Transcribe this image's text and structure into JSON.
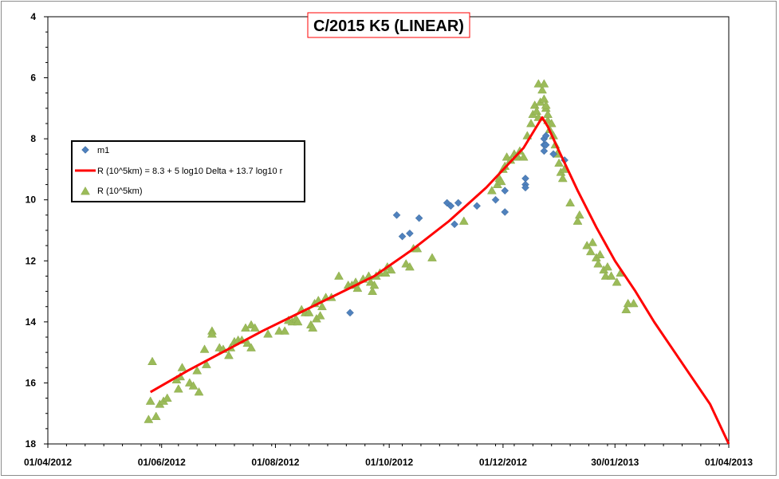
{
  "chart_data": {
    "type": "scatter",
    "title": "C/2015 K5 (LINEAR)",
    "xlabel": "",
    "ylabel": "",
    "x_range": [
      "2012-04-01",
      "2013-04-01"
    ],
    "y_range": [
      4,
      18
    ],
    "y_inverted": true,
    "x_tick_labels": [
      "01/04/2012",
      "01/06/2012",
      "01/08/2012",
      "01/10/2012",
      "01/12/2012",
      "30/01/2013",
      "01/04/2013"
    ],
    "x_tick_dates": [
      "2012-04-01",
      "2012-06-01",
      "2012-08-01",
      "2012-10-01",
      "2012-12-01",
      "2013-01-30",
      "2013-04-01"
    ],
    "y_ticks": [
      4,
      6,
      8,
      10,
      12,
      14,
      16,
      18
    ],
    "legend_position": "upper-left",
    "colors": {
      "m1": "#4f81bd",
      "model": "#ff0000",
      "R": "#9bbb59",
      "title_border": "#ff0000"
    },
    "series": [
      {
        "name": "m1",
        "kind": "scatter",
        "marker": "diamond",
        "points": [
          [
            "2012-09-10",
            13.7
          ],
          [
            "2012-10-05",
            10.5
          ],
          [
            "2012-10-08",
            11.2
          ],
          [
            "2012-10-12",
            11.1
          ],
          [
            "2012-10-17",
            10.6
          ],
          [
            "2012-11-01",
            10.1
          ],
          [
            "2012-11-03",
            10.2
          ],
          [
            "2012-11-05",
            10.8
          ],
          [
            "2012-11-07",
            10.1
          ],
          [
            "2012-11-17",
            10.2
          ],
          [
            "2012-11-27",
            10.0
          ],
          [
            "2012-12-02",
            9.7
          ],
          [
            "2012-12-02",
            10.4
          ],
          [
            "2012-12-13",
            9.3
          ],
          [
            "2012-12-13",
            9.5
          ],
          [
            "2012-12-13",
            9.6
          ],
          [
            "2012-12-23",
            8.0
          ],
          [
            "2012-12-23",
            8.2
          ],
          [
            "2012-12-23",
            8.4
          ],
          [
            "2012-12-24",
            7.9
          ],
          [
            "2012-12-24",
            8.2
          ],
          [
            "2012-12-28",
            8.5
          ],
          [
            "2013-01-03",
            8.7
          ]
        ]
      },
      {
        "name": "R (10^5km) = 8.3 + 5 log10 Delta + 13.7 log10 r",
        "kind": "line",
        "points": [
          [
            "2012-05-26",
            16.3
          ],
          [
            "2012-06-15",
            15.6
          ],
          [
            "2012-07-05",
            14.95
          ],
          [
            "2012-07-25",
            14.3
          ],
          [
            "2012-08-14",
            13.7
          ],
          [
            "2012-09-03",
            13.1
          ],
          [
            "2012-09-23",
            12.5
          ],
          [
            "2012-10-13",
            11.65
          ],
          [
            "2012-11-02",
            10.7
          ],
          [
            "2012-11-22",
            9.6
          ],
          [
            "2012-12-12",
            8.3
          ],
          [
            "2012-12-20",
            7.5
          ],
          [
            "2012-12-22",
            7.3
          ],
          [
            "2012-12-25",
            7.6
          ],
          [
            "2012-12-31",
            8.4
          ],
          [
            "2013-01-10",
            9.7
          ],
          [
            "2013-01-20",
            10.9
          ],
          [
            "2013-01-30",
            12.0
          ],
          [
            "2013-02-10",
            13.0
          ],
          [
            "2013-02-20",
            14.0
          ],
          [
            "2013-03-02",
            14.9
          ],
          [
            "2013-03-12",
            15.8
          ],
          [
            "2013-03-22",
            16.7
          ],
          [
            "2013-04-01",
            18.0
          ]
        ]
      },
      {
        "name": "R (10^5km)",
        "kind": "scatter",
        "marker": "triangle",
        "points": [
          [
            "2012-05-25",
            17.2
          ],
          [
            "2012-05-26",
            16.6
          ],
          [
            "2012-05-27",
            15.3
          ],
          [
            "2012-05-29",
            17.1
          ],
          [
            "2012-05-31",
            16.7
          ],
          [
            "2012-06-02",
            16.6
          ],
          [
            "2012-06-04",
            16.5
          ],
          [
            "2012-06-09",
            15.9
          ],
          [
            "2012-06-10",
            16.2
          ],
          [
            "2012-06-11",
            15.8
          ],
          [
            "2012-06-12",
            15.5
          ],
          [
            "2012-06-16",
            16.0
          ],
          [
            "2012-06-18",
            16.1
          ],
          [
            "2012-06-20",
            15.6
          ],
          [
            "2012-06-21",
            16.3
          ],
          [
            "2012-06-24",
            14.9
          ],
          [
            "2012-06-25",
            15.4
          ],
          [
            "2012-06-28",
            14.3
          ],
          [
            "2012-06-28",
            14.4
          ],
          [
            "2012-07-02",
            14.85
          ],
          [
            "2012-07-04",
            14.9
          ],
          [
            "2012-07-07",
            15.1
          ],
          [
            "2012-07-08",
            14.85
          ],
          [
            "2012-07-10",
            14.65
          ],
          [
            "2012-07-12",
            14.6
          ],
          [
            "2012-07-14",
            14.6
          ],
          [
            "2012-07-16",
            14.2
          ],
          [
            "2012-07-17",
            14.7
          ],
          [
            "2012-07-19",
            14.85
          ],
          [
            "2012-07-19",
            14.1
          ],
          [
            "2012-07-21",
            14.2
          ],
          [
            "2012-07-28",
            14.4
          ],
          [
            "2012-08-03",
            14.3
          ],
          [
            "2012-08-06",
            14.3
          ],
          [
            "2012-08-08",
            13.95
          ],
          [
            "2012-08-10",
            14.0
          ],
          [
            "2012-08-12",
            13.9
          ],
          [
            "2012-08-13",
            14.0
          ],
          [
            "2012-08-15",
            13.6
          ],
          [
            "2012-08-17",
            13.7
          ],
          [
            "2012-08-19",
            13.7
          ],
          [
            "2012-08-20",
            14.1
          ],
          [
            "2012-08-21",
            14.2
          ],
          [
            "2012-08-22",
            13.4
          ],
          [
            "2012-08-23",
            13.9
          ],
          [
            "2012-08-24",
            13.3
          ],
          [
            "2012-08-25",
            13.8
          ],
          [
            "2012-08-26",
            13.5
          ],
          [
            "2012-08-28",
            13.2
          ],
          [
            "2012-08-31",
            13.2
          ],
          [
            "2012-09-04",
            12.5
          ],
          [
            "2012-09-09",
            12.8
          ],
          [
            "2012-09-11",
            12.8
          ],
          [
            "2012-09-13",
            12.7
          ],
          [
            "2012-09-14",
            12.9
          ],
          [
            "2012-09-17",
            12.6
          ],
          [
            "2012-09-20",
            12.5
          ],
          [
            "2012-09-21",
            12.7
          ],
          [
            "2012-09-22",
            13.0
          ],
          [
            "2012-09-23",
            12.8
          ],
          [
            "2012-09-24",
            12.5
          ],
          [
            "2012-09-26",
            12.4
          ],
          [
            "2012-09-29",
            12.4
          ],
          [
            "2012-09-30",
            12.2
          ],
          [
            "2012-10-02",
            12.3
          ],
          [
            "2012-10-10",
            12.1
          ],
          [
            "2012-10-12",
            12.2
          ],
          [
            "2012-10-14",
            11.6
          ],
          [
            "2012-10-16",
            11.6
          ],
          [
            "2012-10-24",
            11.9
          ],
          [
            "2012-11-10",
            10.7
          ],
          [
            "2012-11-25",
            9.7
          ],
          [
            "2012-11-28",
            9.5
          ],
          [
            "2012-11-29",
            9.3
          ],
          [
            "2012-11-30",
            9.4
          ],
          [
            "2012-12-01",
            9.0
          ],
          [
            "2012-12-02",
            8.9
          ],
          [
            "2012-12-03",
            8.6
          ],
          [
            "2012-12-05",
            8.7
          ],
          [
            "2012-12-07",
            8.5
          ],
          [
            "2012-12-09",
            8.6
          ],
          [
            "2012-12-10",
            8.4
          ],
          [
            "2012-12-12",
            8.6
          ],
          [
            "2012-12-14",
            7.9
          ],
          [
            "2012-12-16",
            7.5
          ],
          [
            "2012-12-17",
            7.2
          ],
          [
            "2012-12-18",
            6.9
          ],
          [
            "2012-12-19",
            7.1
          ],
          [
            "2012-12-20",
            7.3
          ],
          [
            "2012-12-20",
            6.2
          ],
          [
            "2012-12-21",
            6.8
          ],
          [
            "2012-12-22",
            6.4
          ],
          [
            "2012-12-23",
            6.2
          ],
          [
            "2012-12-23",
            6.7
          ],
          [
            "2012-12-24",
            7.0
          ],
          [
            "2012-12-24",
            6.9
          ],
          [
            "2012-12-25",
            7.4
          ],
          [
            "2012-12-25",
            7.2
          ],
          [
            "2012-12-26",
            7.7
          ],
          [
            "2012-12-27",
            7.5
          ],
          [
            "2012-12-28",
            7.9
          ],
          [
            "2012-12-29",
            8.2
          ],
          [
            "2012-12-30",
            8.5
          ],
          [
            "2012-12-31",
            8.8
          ],
          [
            "2013-01-01",
            9.1
          ],
          [
            "2013-01-02",
            9.3
          ],
          [
            "2013-01-03",
            9.0
          ],
          [
            "2013-01-06",
            10.1
          ],
          [
            "2013-01-10",
            10.7
          ],
          [
            "2013-01-11",
            10.5
          ],
          [
            "2013-01-15",
            11.5
          ],
          [
            "2013-01-17",
            11.7
          ],
          [
            "2013-01-18",
            11.4
          ],
          [
            "2013-01-20",
            11.9
          ],
          [
            "2013-01-21",
            12.1
          ],
          [
            "2013-01-22",
            11.8
          ],
          [
            "2013-01-24",
            12.3
          ],
          [
            "2013-01-25",
            12.5
          ],
          [
            "2013-01-26",
            12.2
          ],
          [
            "2013-01-28",
            12.5
          ],
          [
            "2013-01-31",
            12.7
          ],
          [
            "2013-02-02",
            12.4
          ],
          [
            "2013-02-05",
            13.6
          ],
          [
            "2013-02-06",
            13.4
          ],
          [
            "2013-02-09",
            13.4
          ]
        ]
      }
    ]
  }
}
